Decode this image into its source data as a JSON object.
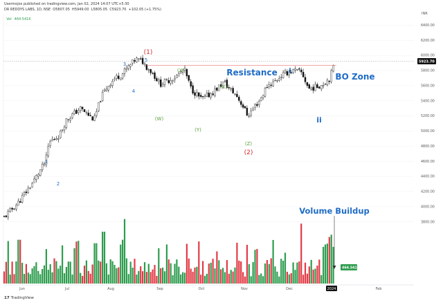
{
  "header": {
    "publisher": "Usermojos published on tradingview.com, Jan 02, 2024 14:07 UTC+5:30",
    "symbol_line": "DR REDDYS LABS, 1D, NSE  O5807.05  H5949.00  L5805.05  C5923.70  +102.05 (+1.75%)",
    "volume_label": "Vol",
    "volume_value": "464.541K"
  },
  "footer": {
    "logo": "TradingView",
    "logo_mark": "17"
  },
  "colors": {
    "up": "#2e9c4e",
    "down": "#e23a45",
    "candle": "#111111",
    "label_blue": "#1f6cc6",
    "label_green": "#5aa03c",
    "label_red": "#d42a2a",
    "resistance_line": "#f08a8a",
    "axis_text": "#555555",
    "price_badge_bg": "#111111",
    "vol_badge_bg": "#2e9c4e"
  },
  "chart_data": {
    "type": "candlestick",
    "series": [
      {
        "name": "DR REDDYS LABS",
        "values": []
      },
      {
        "name": "Vol",
        "values": []
      }
    ],
    "x_ticks": [
      "Jun",
      "Jul",
      "Aug",
      "Sep",
      "Oct",
      "Nov",
      "Dec",
      "2024",
      "Feb"
    ],
    "y_ticks": [
      "6400.00",
      "6200.00",
      "6000.00",
      "5800.00",
      "5600.00",
      "5400.00",
      "5200.00",
      "5000.00",
      "4800.00",
      "4600.00",
      "4400.00",
      "4200.00",
      "4000.00",
      "3800.00"
    ],
    "y_range": [
      3660,
      6550
    ],
    "y_unit_label": "INR",
    "last_price": "5923.70",
    "last_volume": "464.541K",
    "resistance_level": 5870,
    "annotations": {
      "resistance": "Resistance",
      "bo_zone": "BO Zone",
      "volume_buildup": "Volume Buildup",
      "wave_1_top": "(1)",
      "wave_2_bottom": "(2)",
      "w": "(W)",
      "x1": "(X)",
      "x2": "(X)",
      "y": "(Y)",
      "z": "(Z)",
      "i": "i",
      "ii": "ii",
      "n1": "1",
      "n2": "2",
      "n3": "3",
      "n4": "4",
      "n5": "5"
    }
  }
}
